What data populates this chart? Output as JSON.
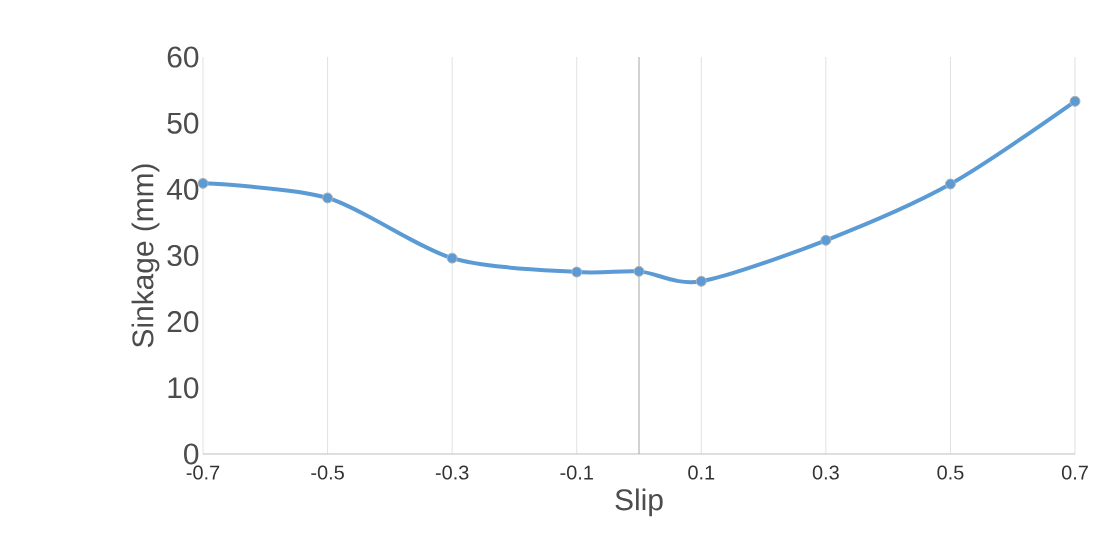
{
  "chart_data": {
    "type": "line",
    "xlabel": "Slip",
    "ylabel": "Sinkage (mm)",
    "x": [
      -0.7,
      -0.5,
      -0.3,
      -0.1,
      0,
      0.1,
      0.3,
      0.5,
      0.7
    ],
    "series": [
      {
        "color": "#5b9bd5",
        "values": [
          40.9,
          38.7,
          29.6,
          27.5,
          27.6,
          26.1,
          32.3,
          40.8,
          53.3
        ]
      }
    ],
    "xlim": [
      -0.7,
      0.7
    ],
    "xticks": [
      -0.7,
      -0.5,
      -0.3,
      -0.1,
      0.1,
      0.3,
      0.5,
      0.7
    ],
    "ylim": [
      0,
      60
    ],
    "yticks": [
      0,
      10,
      20,
      30,
      40,
      50,
      60
    ],
    "ref_lines": [
      {
        "axis": "x",
        "value": 0,
        "color": "#a6a6a6"
      }
    ],
    "grid": "x",
    "marker": "circle",
    "line_style": "solid"
  }
}
